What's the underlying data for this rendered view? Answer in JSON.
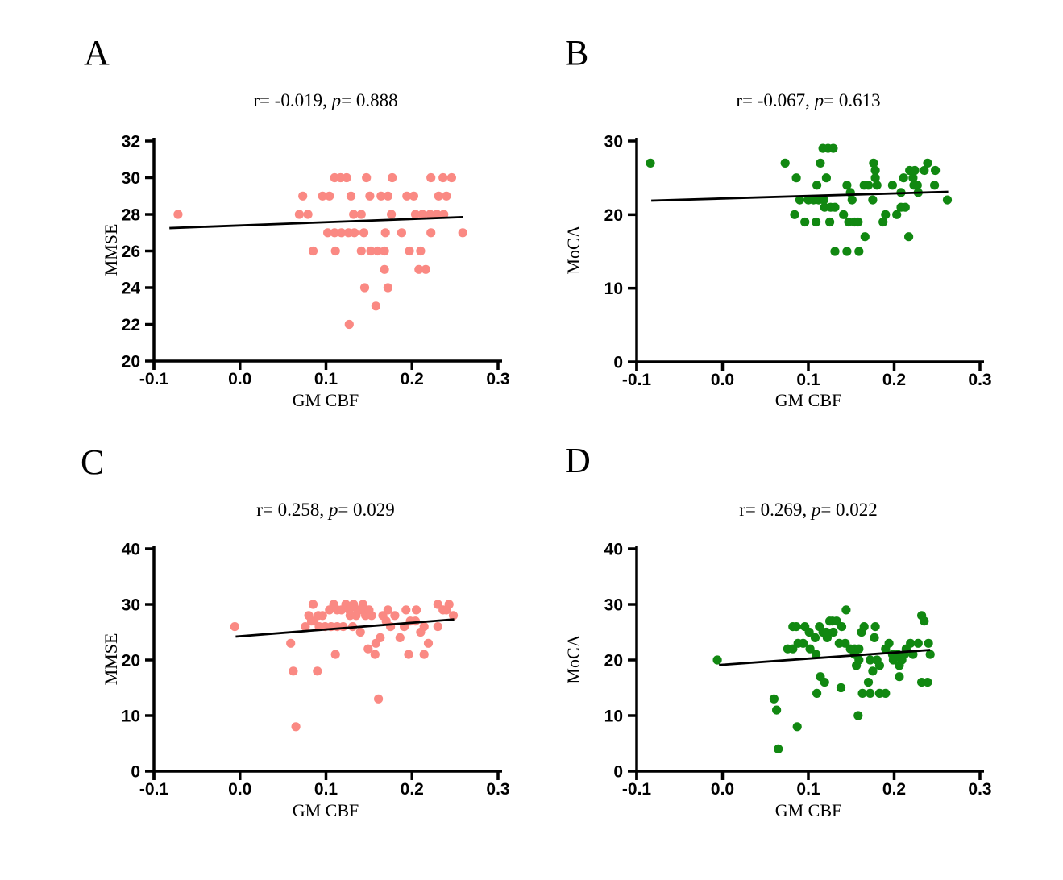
{
  "figure": {
    "background": "#ffffff",
    "axis_color": "#000000",
    "trend_color": "#000000"
  },
  "chart_data": [
    {
      "type": "scatter",
      "panel": "A",
      "stats_prefix": "r= -0.019, ",
      "p_symbol": "p",
      "stats_suffix": "= 0.888",
      "xlabel": "GM CBF",
      "ylabel": "MMSE",
      "xlim": [
        -0.1,
        0.3
      ],
      "ylim": [
        20,
        32
      ],
      "xtick_values": [
        -0.1,
        0.0,
        0.1,
        0.2,
        0.3
      ],
      "xticks": [
        "-0.1",
        "0.0",
        "0.1",
        "0.2",
        "0.3"
      ],
      "yticks": [
        20,
        22,
        24,
        26,
        28,
        30,
        32
      ],
      "point_color": "#FA8983",
      "trend": {
        "x1": -0.082,
        "y1": 27.25,
        "x2": 0.259,
        "y2": 27.85
      },
      "points": [
        [
          -0.072,
          28
        ],
        [
          0.069,
          28
        ],
        [
          0.073,
          29
        ],
        [
          0.079,
          28
        ],
        [
          0.085,
          26
        ],
        [
          0.096,
          29
        ],
        [
          0.102,
          27
        ],
        [
          0.104,
          29
        ],
        [
          0.11,
          30
        ],
        [
          0.11,
          27
        ],
        [
          0.111,
          26
        ],
        [
          0.117,
          30
        ],
        [
          0.118,
          27
        ],
        [
          0.124,
          30
        ],
        [
          0.126,
          27
        ],
        [
          0.127,
          22
        ],
        [
          0.129,
          29
        ],
        [
          0.132,
          28
        ],
        [
          0.133,
          27
        ],
        [
          0.141,
          28
        ],
        [
          0.141,
          26
        ],
        [
          0.144,
          27
        ],
        [
          0.145,
          24
        ],
        [
          0.147,
          30
        ],
        [
          0.151,
          29
        ],
        [
          0.152,
          26
        ],
        [
          0.158,
          23
        ],
        [
          0.16,
          26
        ],
        [
          0.164,
          29
        ],
        [
          0.168,
          26
        ],
        [
          0.168,
          25
        ],
        [
          0.169,
          27
        ],
        [
          0.172,
          29
        ],
        [
          0.172,
          24
        ],
        [
          0.176,
          28
        ],
        [
          0.177,
          30
        ],
        [
          0.188,
          27
        ],
        [
          0.194,
          29
        ],
        [
          0.197,
          26
        ],
        [
          0.202,
          29
        ],
        [
          0.204,
          28
        ],
        [
          0.208,
          25
        ],
        [
          0.21,
          26
        ],
        [
          0.212,
          28
        ],
        [
          0.216,
          25
        ],
        [
          0.221,
          28
        ],
        [
          0.222,
          30
        ],
        [
          0.222,
          27
        ],
        [
          0.229,
          28
        ],
        [
          0.231,
          29
        ],
        [
          0.236,
          30
        ],
        [
          0.237,
          28
        ],
        [
          0.24,
          29
        ],
        [
          0.246,
          30
        ],
        [
          0.259,
          27
        ]
      ]
    },
    {
      "type": "scatter",
      "panel": "B",
      "stats_prefix": "r= -0.067, ",
      "p_symbol": "p",
      "stats_suffix": "= 0.613",
      "xlabel": "GM CBF",
      "ylabel": "MoCA",
      "xlim": [
        -0.1,
        0.3
      ],
      "ylim": [
        0,
        30
      ],
      "xtick_values": [
        -0.1,
        0.0,
        0.1,
        0.2,
        0.3
      ],
      "xticks": [
        "-0.1",
        "0.0",
        "0.1",
        "0.2",
        "0.3"
      ],
      "yticks": [
        0,
        10,
        20,
        30
      ],
      "point_color": "#118811",
      "trend": {
        "x1": -0.083,
        "y1": 21.9,
        "x2": 0.263,
        "y2": 23.1
      },
      "points": [
        [
          -0.084,
          27
        ],
        [
          0.073,
          27
        ],
        [
          0.084,
          20
        ],
        [
          0.086,
          25
        ],
        [
          0.09,
          22
        ],
        [
          0.096,
          19
        ],
        [
          0.1,
          22
        ],
        [
          0.106,
          22
        ],
        [
          0.109,
          19
        ],
        [
          0.11,
          24
        ],
        [
          0.112,
          22
        ],
        [
          0.114,
          27
        ],
        [
          0.117,
          29
        ],
        [
          0.118,
          22
        ],
        [
          0.119,
          21
        ],
        [
          0.121,
          25
        ],
        [
          0.123,
          29
        ],
        [
          0.125,
          19
        ],
        [
          0.126,
          21
        ],
        [
          0.129,
          29
        ],
        [
          0.131,
          21
        ],
        [
          0.131,
          15
        ],
        [
          0.141,
          20
        ],
        [
          0.145,
          24
        ],
        [
          0.145,
          15
        ],
        [
          0.147,
          19
        ],
        [
          0.149,
          23
        ],
        [
          0.151,
          22
        ],
        [
          0.154,
          19
        ],
        [
          0.158,
          19
        ],
        [
          0.159,
          15
        ],
        [
          0.165,
          24
        ],
        [
          0.166,
          17
        ],
        [
          0.17,
          24
        ],
        [
          0.175,
          22
        ],
        [
          0.176,
          27
        ],
        [
          0.178,
          26
        ],
        [
          0.178,
          25
        ],
        [
          0.18,
          24
        ],
        [
          0.187,
          19
        ],
        [
          0.19,
          20
        ],
        [
          0.198,
          24
        ],
        [
          0.203,
          20
        ],
        [
          0.208,
          23
        ],
        [
          0.208,
          21
        ],
        [
          0.211,
          25
        ],
        [
          0.213,
          21
        ],
        [
          0.217,
          17
        ],
        [
          0.218,
          26
        ],
        [
          0.222,
          25
        ],
        [
          0.223,
          24
        ],
        [
          0.224,
          26
        ],
        [
          0.227,
          24
        ],
        [
          0.228,
          23
        ],
        [
          0.235,
          26
        ],
        [
          0.239,
          27
        ],
        [
          0.247,
          24
        ],
        [
          0.248,
          26
        ],
        [
          0.262,
          22
        ]
      ]
    },
    {
      "type": "scatter",
      "panel": "C",
      "stats_prefix": "r= 0.258, ",
      "p_symbol": "p",
      "stats_suffix": "= 0.029",
      "xlabel": "GM CBF",
      "ylabel": "MMSE",
      "xlim": [
        -0.1,
        0.3
      ],
      "ylim": [
        0,
        40
      ],
      "xtick_values": [
        -0.1,
        0.0,
        0.1,
        0.2,
        0.3
      ],
      "xticks": [
        "-0.1",
        "0.0",
        "0.1",
        "0.2",
        "0.3"
      ],
      "yticks": [
        0,
        10,
        20,
        30,
        40
      ],
      "point_color": "#FA8983",
      "trend": {
        "x1": -0.005,
        "y1": 24.2,
        "x2": 0.249,
        "y2": 27.3
      },
      "points": [
        [
          -0.006,
          26
        ],
        [
          0.059,
          23
        ],
        [
          0.062,
          18
        ],
        [
          0.065,
          8
        ],
        [
          0.076,
          26
        ],
        [
          0.08,
          28
        ],
        [
          0.083,
          27
        ],
        [
          0.085,
          30
        ],
        [
          0.086,
          27
        ],
        [
          0.09,
          18
        ],
        [
          0.091,
          28
        ],
        [
          0.092,
          26
        ],
        [
          0.096,
          28
        ],
        [
          0.099,
          26
        ],
        [
          0.104,
          29
        ],
        [
          0.106,
          26
        ],
        [
          0.109,
          30
        ],
        [
          0.111,
          21
        ],
        [
          0.113,
          26
        ],
        [
          0.113,
          29
        ],
        [
          0.118,
          29
        ],
        [
          0.12,
          26
        ],
        [
          0.123,
          30
        ],
        [
          0.127,
          29
        ],
        [
          0.128,
          28
        ],
        [
          0.131,
          26
        ],
        [
          0.132,
          30
        ],
        [
          0.135,
          28
        ],
        [
          0.137,
          29
        ],
        [
          0.14,
          25
        ],
        [
          0.141,
          29
        ],
        [
          0.143,
          30
        ],
        [
          0.145,
          29
        ],
        [
          0.146,
          28
        ],
        [
          0.149,
          22
        ],
        [
          0.15,
          29
        ],
        [
          0.153,
          28
        ],
        [
          0.157,
          21
        ],
        [
          0.158,
          23
        ],
        [
          0.161,
          13
        ],
        [
          0.163,
          24
        ],
        [
          0.166,
          28
        ],
        [
          0.17,
          27
        ],
        [
          0.172,
          29
        ],
        [
          0.175,
          26
        ],
        [
          0.18,
          28
        ],
        [
          0.186,
          24
        ],
        [
          0.191,
          26
        ],
        [
          0.193,
          29
        ],
        [
          0.196,
          21
        ],
        [
          0.198,
          27
        ],
        [
          0.204,
          27
        ],
        [
          0.205,
          29
        ],
        [
          0.21,
          25
        ],
        [
          0.214,
          21
        ],
        [
          0.214,
          26
        ],
        [
          0.219,
          23
        ],
        [
          0.23,
          26
        ],
        [
          0.23,
          30
        ],
        [
          0.236,
          29
        ],
        [
          0.24,
          29
        ],
        [
          0.243,
          30
        ],
        [
          0.248,
          28
        ]
      ]
    },
    {
      "type": "scatter",
      "panel": "D",
      "stats_prefix": "r= 0.269, ",
      "p_symbol": "p",
      "stats_suffix": "= 0.022",
      "xlabel": "GM CBF",
      "ylabel": "MoCA",
      "xlim": [
        -0.1,
        0.3
      ],
      "ylim": [
        0,
        40
      ],
      "xtick_values": [
        -0.1,
        0.0,
        0.1,
        0.2,
        0.3
      ],
      "xticks": [
        "-0.1",
        "0.0",
        "0.1",
        "0.2",
        "0.3"
      ],
      "yticks": [
        0,
        10,
        20,
        30,
        40
      ],
      "point_color": "#118811",
      "trend": {
        "x1": -0.004,
        "y1": 19.1,
        "x2": 0.242,
        "y2": 21.8
      },
      "points": [
        [
          -0.006,
          20
        ],
        [
          0.06,
          13
        ],
        [
          0.063,
          11
        ],
        [
          0.065,
          4
        ],
        [
          0.076,
          22
        ],
        [
          0.082,
          22
        ],
        [
          0.082,
          26
        ],
        [
          0.086,
          26
        ],
        [
          0.087,
          8
        ],
        [
          0.088,
          23
        ],
        [
          0.094,
          23
        ],
        [
          0.096,
          26
        ],
        [
          0.101,
          25
        ],
        [
          0.102,
          22
        ],
        [
          0.108,
          24
        ],
        [
          0.109,
          21
        ],
        [
          0.11,
          14
        ],
        [
          0.113,
          26
        ],
        [
          0.114,
          17
        ],
        [
          0.117,
          25
        ],
        [
          0.119,
          16
        ],
        [
          0.121,
          25
        ],
        [
          0.122,
          24
        ],
        [
          0.125,
          27
        ],
        [
          0.128,
          27
        ],
        [
          0.129,
          25
        ],
        [
          0.133,
          27
        ],
        [
          0.136,
          23
        ],
        [
          0.138,
          15
        ],
        [
          0.139,
          26
        ],
        [
          0.143,
          23
        ],
        [
          0.144,
          29
        ],
        [
          0.149,
          22
        ],
        [
          0.154,
          21
        ],
        [
          0.154,
          22
        ],
        [
          0.156,
          19
        ],
        [
          0.158,
          10
        ],
        [
          0.159,
          20
        ],
        [
          0.159,
          22
        ],
        [
          0.162,
          25
        ],
        [
          0.163,
          14
        ],
        [
          0.165,
          26
        ],
        [
          0.17,
          16
        ],
        [
          0.172,
          14
        ],
        [
          0.172,
          20
        ],
        [
          0.175,
          18
        ],
        [
          0.177,
          24
        ],
        [
          0.178,
          26
        ],
        [
          0.18,
          20
        ],
        [
          0.183,
          14
        ],
        [
          0.183,
          19
        ],
        [
          0.19,
          14
        ],
        [
          0.19,
          22
        ],
        [
          0.194,
          23
        ],
        [
          0.198,
          21
        ],
        [
          0.199,
          20
        ],
        [
          0.204,
          21
        ],
        [
          0.206,
          17
        ],
        [
          0.206,
          19
        ],
        [
          0.209,
          20
        ],
        [
          0.212,
          21
        ],
        [
          0.214,
          22
        ],
        [
          0.219,
          23
        ],
        [
          0.222,
          21
        ],
        [
          0.228,
          23
        ],
        [
          0.232,
          16
        ],
        [
          0.232,
          28
        ],
        [
          0.235,
          27
        ],
        [
          0.239,
          16
        ],
        [
          0.24,
          23
        ],
        [
          0.242,
          21
        ]
      ]
    }
  ]
}
